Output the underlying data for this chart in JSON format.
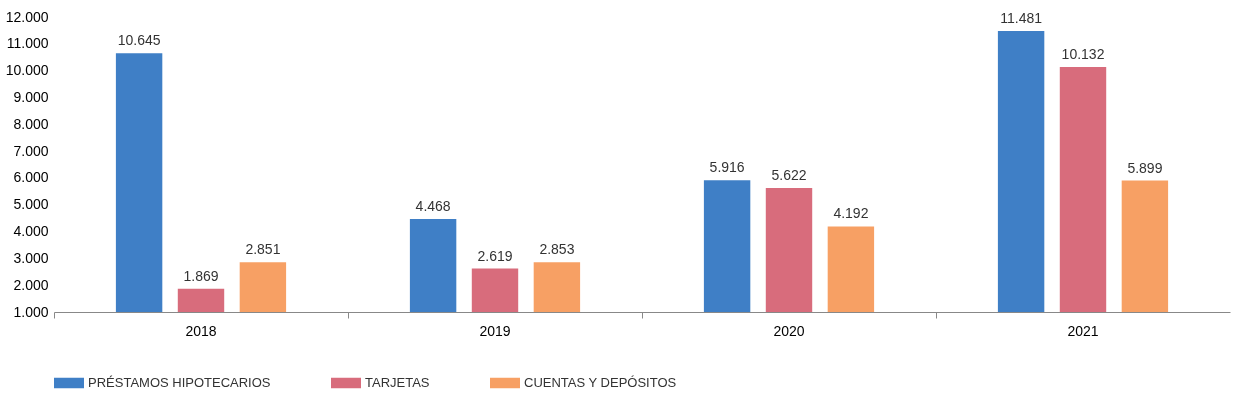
{
  "chart_data": {
    "type": "bar",
    "categories": [
      "2018",
      "2019",
      "2020",
      "2021"
    ],
    "series": [
      {
        "name": "PRÉSTAMOS HIPOTECARIOS",
        "color": "#3f7fc6",
        "values": [
          10645,
          4468,
          5916,
          11481
        ],
        "value_labels": [
          "10.645",
          "4.468",
          "5.916",
          "11.481"
        ]
      },
      {
        "name": "TARJETAS",
        "color": "#d86c7c",
        "values": [
          1869,
          2619,
          5622,
          10132
        ],
        "value_labels": [
          "1.869",
          "2.619",
          "5.622",
          "10.132"
        ]
      },
      {
        "name": "CUENTAS Y DEPÓSITOS",
        "color": "#f7a064",
        "values": [
          2851,
          2853,
          4192,
          5899
        ],
        "value_labels": [
          "2.851",
          "2.853",
          "4.192",
          "5.899"
        ]
      }
    ],
    "ylim": [
      1000,
      12000
    ],
    "yticks": [
      {
        "value": 1000,
        "label": "1.000"
      },
      {
        "value": 2000,
        "label": "2.000"
      },
      {
        "value": 3000,
        "label": "3.000"
      },
      {
        "value": 4000,
        "label": "4.000"
      },
      {
        "value": 5000,
        "label": "5.000"
      },
      {
        "value": 6000,
        "label": "6.000"
      },
      {
        "value": 7000,
        "label": "7.000"
      },
      {
        "value": 8000,
        "label": "8.000"
      },
      {
        "value": 9000,
        "label": "9.000"
      },
      {
        "value": 10000,
        "label": "10.000"
      },
      {
        "value": 11000,
        "label": "11.000"
      },
      {
        "value": 12000,
        "label": "12.000"
      }
    ],
    "grid": false,
    "legend": "bottom left"
  }
}
